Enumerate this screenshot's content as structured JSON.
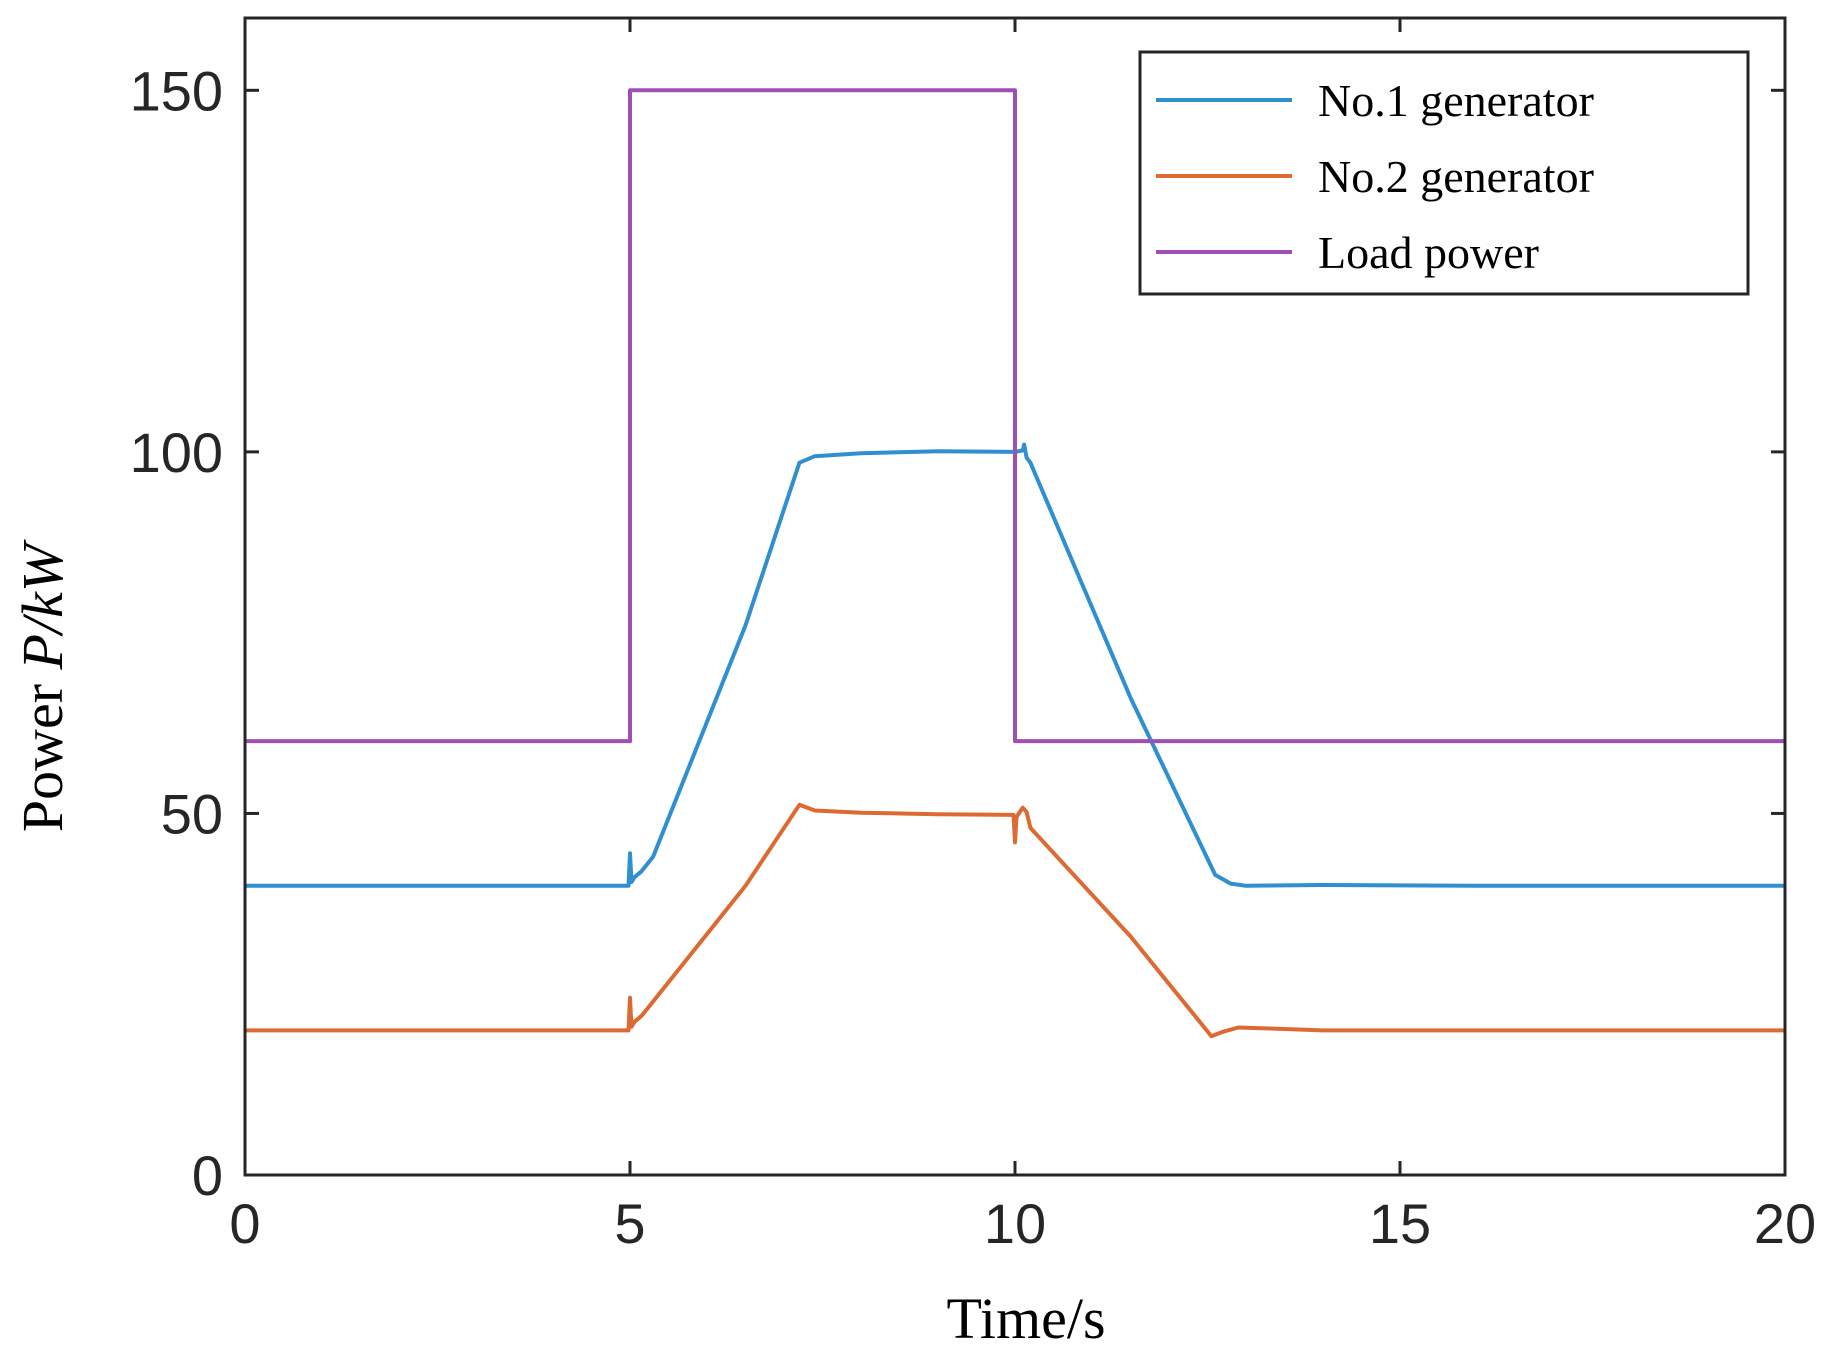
{
  "chart_data": {
    "type": "line",
    "title": "",
    "xlabel": "Time/s",
    "ylabel_prefix": "Power ",
    "ylabel_var": "P/kW",
    "xlim": [
      0,
      20
    ],
    "ylim": [
      0,
      160
    ],
    "xticks": [
      0,
      5,
      10,
      15,
      20
    ],
    "yticks": [
      0,
      50,
      100,
      150
    ],
    "x_tick_labels": [
      "0",
      "5",
      "10",
      "15",
      "20"
    ],
    "y_tick_labels": [
      "0",
      "50",
      "100",
      "150"
    ],
    "grid": false,
    "legend_position": "top-right",
    "series": [
      {
        "name": "No.1 generator",
        "color": "#2f8fcf",
        "x": [
          0,
          4.98,
          5.0,
          5.02,
          5.06,
          5.15,
          5.3,
          6.5,
          7.2,
          7.4,
          8.0,
          9.0,
          10.0,
          10.1,
          10.12,
          10.15,
          10.2,
          10.3,
          11.5,
          12.6,
          12.8,
          13.0,
          14.0,
          16.0,
          20.0
        ],
        "y": [
          40,
          40,
          44.5,
          40.5,
          41.2,
          42.0,
          44,
          76,
          98.5,
          99.4,
          99.8,
          100.1,
          100,
          100.2,
          101.0,
          99.2,
          98.5,
          96,
          66,
          41.5,
          40.3,
          40.0,
          40.1,
          40.0,
          40.0
        ]
      },
      {
        "name": "No.2 generator",
        "color": "#dc6a32",
        "x": [
          0,
          4.98,
          5.0,
          5.02,
          5.06,
          5.15,
          5.3,
          6.5,
          7.2,
          7.4,
          8.0,
          9.0,
          9.98,
          10.0,
          10.02,
          10.05,
          10.1,
          10.15,
          10.2,
          11.5,
          12.55,
          12.7,
          12.9,
          13.2,
          14.0,
          16.0,
          20.0
        ],
        "y": [
          20,
          20,
          24.5,
          20.5,
          21.2,
          22.0,
          24,
          40,
          51.2,
          50.4,
          50.1,
          49.9,
          49.8,
          46.0,
          49.5,
          50.0,
          50.8,
          50.2,
          48.0,
          33.0,
          19.2,
          19.8,
          20.4,
          20.3,
          20.0,
          20.0,
          20.0
        ]
      },
      {
        "name": "Load power",
        "color": "#9e4fb3",
        "x": [
          0,
          5.0,
          5.0,
          10.0,
          10.0,
          20.0
        ],
        "y": [
          60,
          60,
          150,
          150,
          60,
          60
        ]
      }
    ]
  }
}
